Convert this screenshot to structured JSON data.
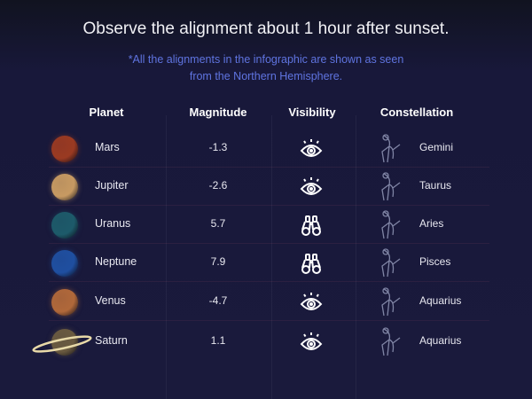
{
  "title": "Observe the alignment about 1 hour after sunset.",
  "subtitle_line1": "*All the alignments in the infographic are shown as seen",
  "subtitle_line2": "from the Northern Hemisphere.",
  "headers": {
    "planet": "Planet",
    "magnitude": "Magnitude",
    "visibility": "Visibility",
    "constellation": "Constellation"
  },
  "colors": {
    "background": "#1a1a3c",
    "subtitle": "#5f74e0"
  },
  "rows": [
    {
      "planet": "Mars",
      "magnitude": "-1.3",
      "visibility": "eye-icon",
      "constellation": "Gemini",
      "color": "#9a3a22"
    },
    {
      "planet": "Jupiter",
      "magnitude": "-2.6",
      "visibility": "eye-icon",
      "constellation": "Taurus",
      "color": "#c79a62"
    },
    {
      "planet": "Uranus",
      "magnitude": "5.7",
      "visibility": "binoculars-icon",
      "constellation": "Aries",
      "color": "#1d5a6a"
    },
    {
      "planet": "Neptune",
      "magnitude": "7.9",
      "visibility": "binoculars-icon",
      "constellation": "Pisces",
      "color": "#1f4fa0"
    },
    {
      "planet": "Venus",
      "magnitude": "-4.7",
      "visibility": "eye-icon",
      "constellation": "Aquarius",
      "color": "#b0683a"
    },
    {
      "planet": "Saturn",
      "magnitude": "1.1",
      "visibility": "eye-icon",
      "constellation": "Aquarius",
      "color": "#6a5a40"
    }
  ]
}
